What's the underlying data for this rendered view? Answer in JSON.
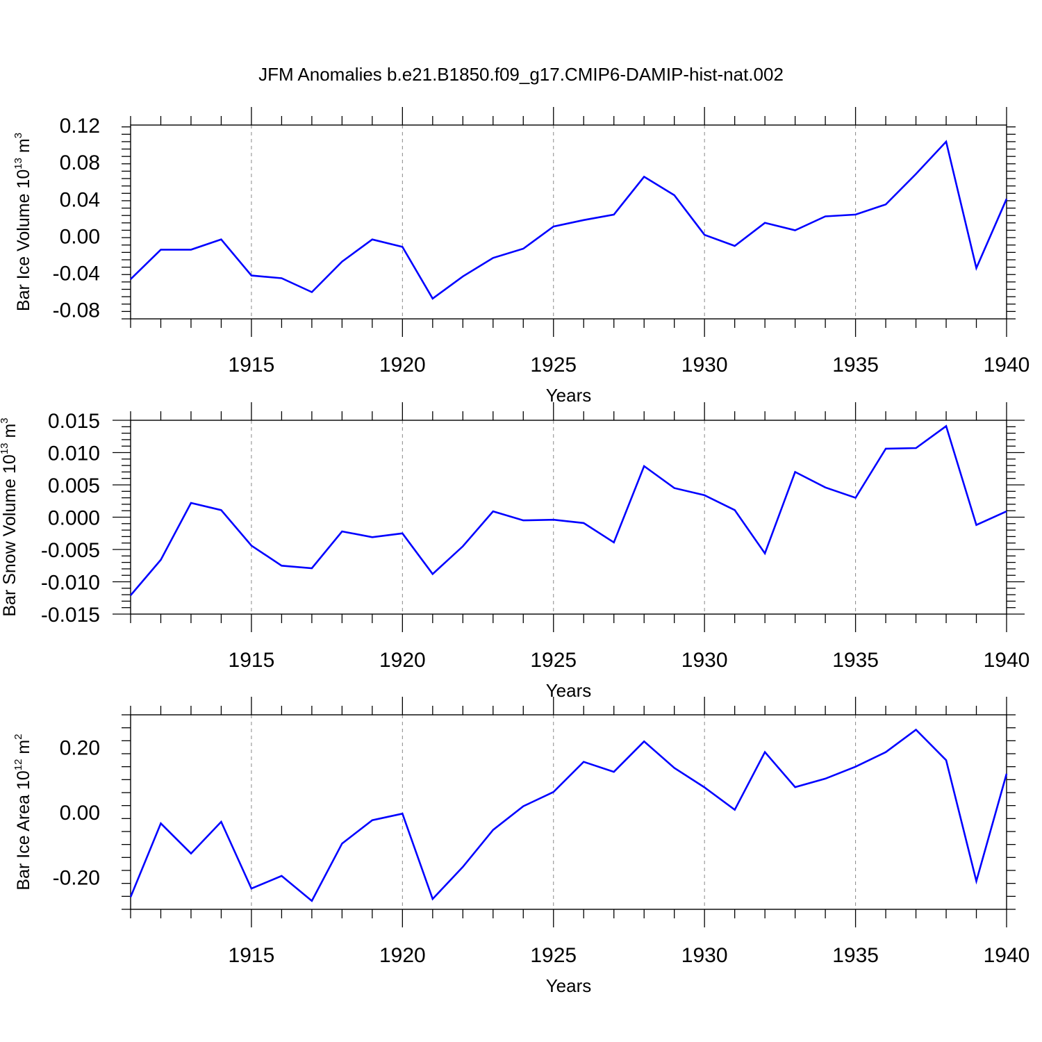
{
  "figure_title": "JFM Anomalies b.e21.B1850.f09_g17.CMIP6-DAMIP-hist-nat.002",
  "chart_data": [
    {
      "type": "line",
      "title": "JFM Anomalies b.e21.B1850.f09_g17.CMIP6-DAMIP-hist-nat.002",
      "xlabel": "Years",
      "ylabel": "Bar Ice Volume 10",
      "ylabel_exp": "13",
      "ylabel_unit": " m",
      "ylabel_unit_exp": "3",
      "xlim": [
        1911,
        1940
      ],
      "ylim": [
        -0.09,
        0.12
      ],
      "xticks": [
        1915,
        1920,
        1925,
        1930,
        1935,
        1940
      ],
      "xtick_labels": [
        "1915",
        "1920",
        "1925",
        "1930",
        "1935",
        "1940"
      ],
      "yticks": [
        -0.08,
        -0.04,
        0.0,
        0.04,
        0.08,
        0.12
      ],
      "ytick_labels": [
        "-0.08",
        "-0.04",
        "0.00",
        "0.04",
        "0.08",
        "0.12"
      ],
      "grid": "dashed vertical at major x ticks",
      "series": [
        {
          "name": "Bar Ice Volume",
          "color": "#0000ff",
          "x": [
            1911,
            1912,
            1913,
            1914,
            1915,
            1916,
            1917,
            1918,
            1919,
            1920,
            1921,
            1922,
            1923,
            1924,
            1925,
            1926,
            1927,
            1928,
            1929,
            1930,
            1931,
            1932,
            1933,
            1934,
            1935,
            1936,
            1937,
            1938,
            1939,
            1940
          ],
          "values": [
            -0.047,
            -0.015,
            -0.015,
            -0.004,
            -0.043,
            -0.046,
            -0.061,
            -0.028,
            -0.004,
            -0.012,
            -0.068,
            -0.044,
            -0.024,
            -0.014,
            0.01,
            0.017,
            0.023,
            0.064,
            0.044,
            0.001,
            -0.011,
            0.014,
            0.006,
            0.021,
            0.023,
            0.034,
            0.067,
            0.102,
            -0.035,
            0.04
          ]
        }
      ]
    },
    {
      "type": "line",
      "xlabel": "Years",
      "ylabel": "Bar Snow Volume 10",
      "ylabel_exp": "13",
      "ylabel_unit": " m",
      "ylabel_unit_exp": "3",
      "xlim": [
        1911,
        1940
      ],
      "ylim": [
        -0.015,
        0.015
      ],
      "xticks": [
        1915,
        1920,
        1925,
        1930,
        1935,
        1940
      ],
      "xtick_labels": [
        "1915",
        "1920",
        "1925",
        "1930",
        "1935",
        "1940"
      ],
      "yticks": [
        -0.015,
        -0.01,
        -0.005,
        0.0,
        0.005,
        0.01,
        0.015
      ],
      "ytick_labels": [
        "-0.015",
        "-0.010",
        "-0.005",
        "0.000",
        "0.005",
        "0.010",
        "0.015"
      ],
      "grid": "dashed vertical at major x ticks",
      "series": [
        {
          "name": "Bar Snow Volume",
          "color": "#0000ff",
          "x": [
            1911,
            1912,
            1913,
            1914,
            1915,
            1916,
            1917,
            1918,
            1919,
            1920,
            1921,
            1922,
            1923,
            1924,
            1925,
            1926,
            1927,
            1928,
            1929,
            1930,
            1931,
            1932,
            1933,
            1934,
            1935,
            1936,
            1937,
            1938,
            1939,
            1940
          ],
          "values": [
            -0.0121,
            -0.0066,
            0.0022,
            0.0011,
            -0.0044,
            -0.0075,
            -0.0079,
            -0.0022,
            -0.0031,
            -0.0025,
            -0.0088,
            -0.0045,
            0.0009,
            -0.0005,
            -0.0004,
            -0.0009,
            -0.0039,
            0.0079,
            0.0045,
            0.0034,
            0.0011,
            -0.0056,
            0.007,
            0.0046,
            0.003,
            0.0106,
            0.0107,
            0.0141,
            -0.0012,
            0.0009
          ]
        }
      ]
    },
    {
      "type": "line",
      "xlabel": "Years",
      "ylabel": "Bar Ice Area 10",
      "ylabel_exp": "12",
      "ylabel_unit": " m",
      "ylabel_unit_exp": "2",
      "xlim": [
        1911,
        1940
      ],
      "ylim": [
        -0.3,
        0.3
      ],
      "xticks": [
        1915,
        1920,
        1925,
        1930,
        1935,
        1940
      ],
      "xtick_labels": [
        "1915",
        "1920",
        "1925",
        "1930",
        "1935",
        "1940"
      ],
      "yticks": [
        -0.2,
        0.0,
        0.2
      ],
      "ytick_labels": [
        "-0.20",
        "0.00",
        "0.20"
      ],
      "grid": "dashed vertical at major x ticks",
      "series": [
        {
          "name": "Bar Ice Area",
          "color": "#0000ff",
          "x": [
            1911,
            1912,
            1913,
            1914,
            1915,
            1916,
            1917,
            1918,
            1919,
            1920,
            1921,
            1922,
            1923,
            1924,
            1925,
            1926,
            1927,
            1928,
            1929,
            1930,
            1931,
            1932,
            1933,
            1934,
            1935,
            1936,
            1937,
            1938,
            1939,
            1940
          ],
          "values": [
            -0.262,
            -0.035,
            -0.128,
            -0.03,
            -0.236,
            -0.197,
            -0.274,
            -0.097,
            -0.025,
            -0.005,
            -0.268,
            -0.169,
            -0.055,
            0.018,
            0.062,
            0.155,
            0.124,
            0.218,
            0.136,
            0.076,
            0.007,
            0.185,
            0.077,
            0.103,
            0.14,
            0.185,
            0.254,
            0.16,
            -0.213,
            0.118
          ]
        }
      ]
    }
  ]
}
